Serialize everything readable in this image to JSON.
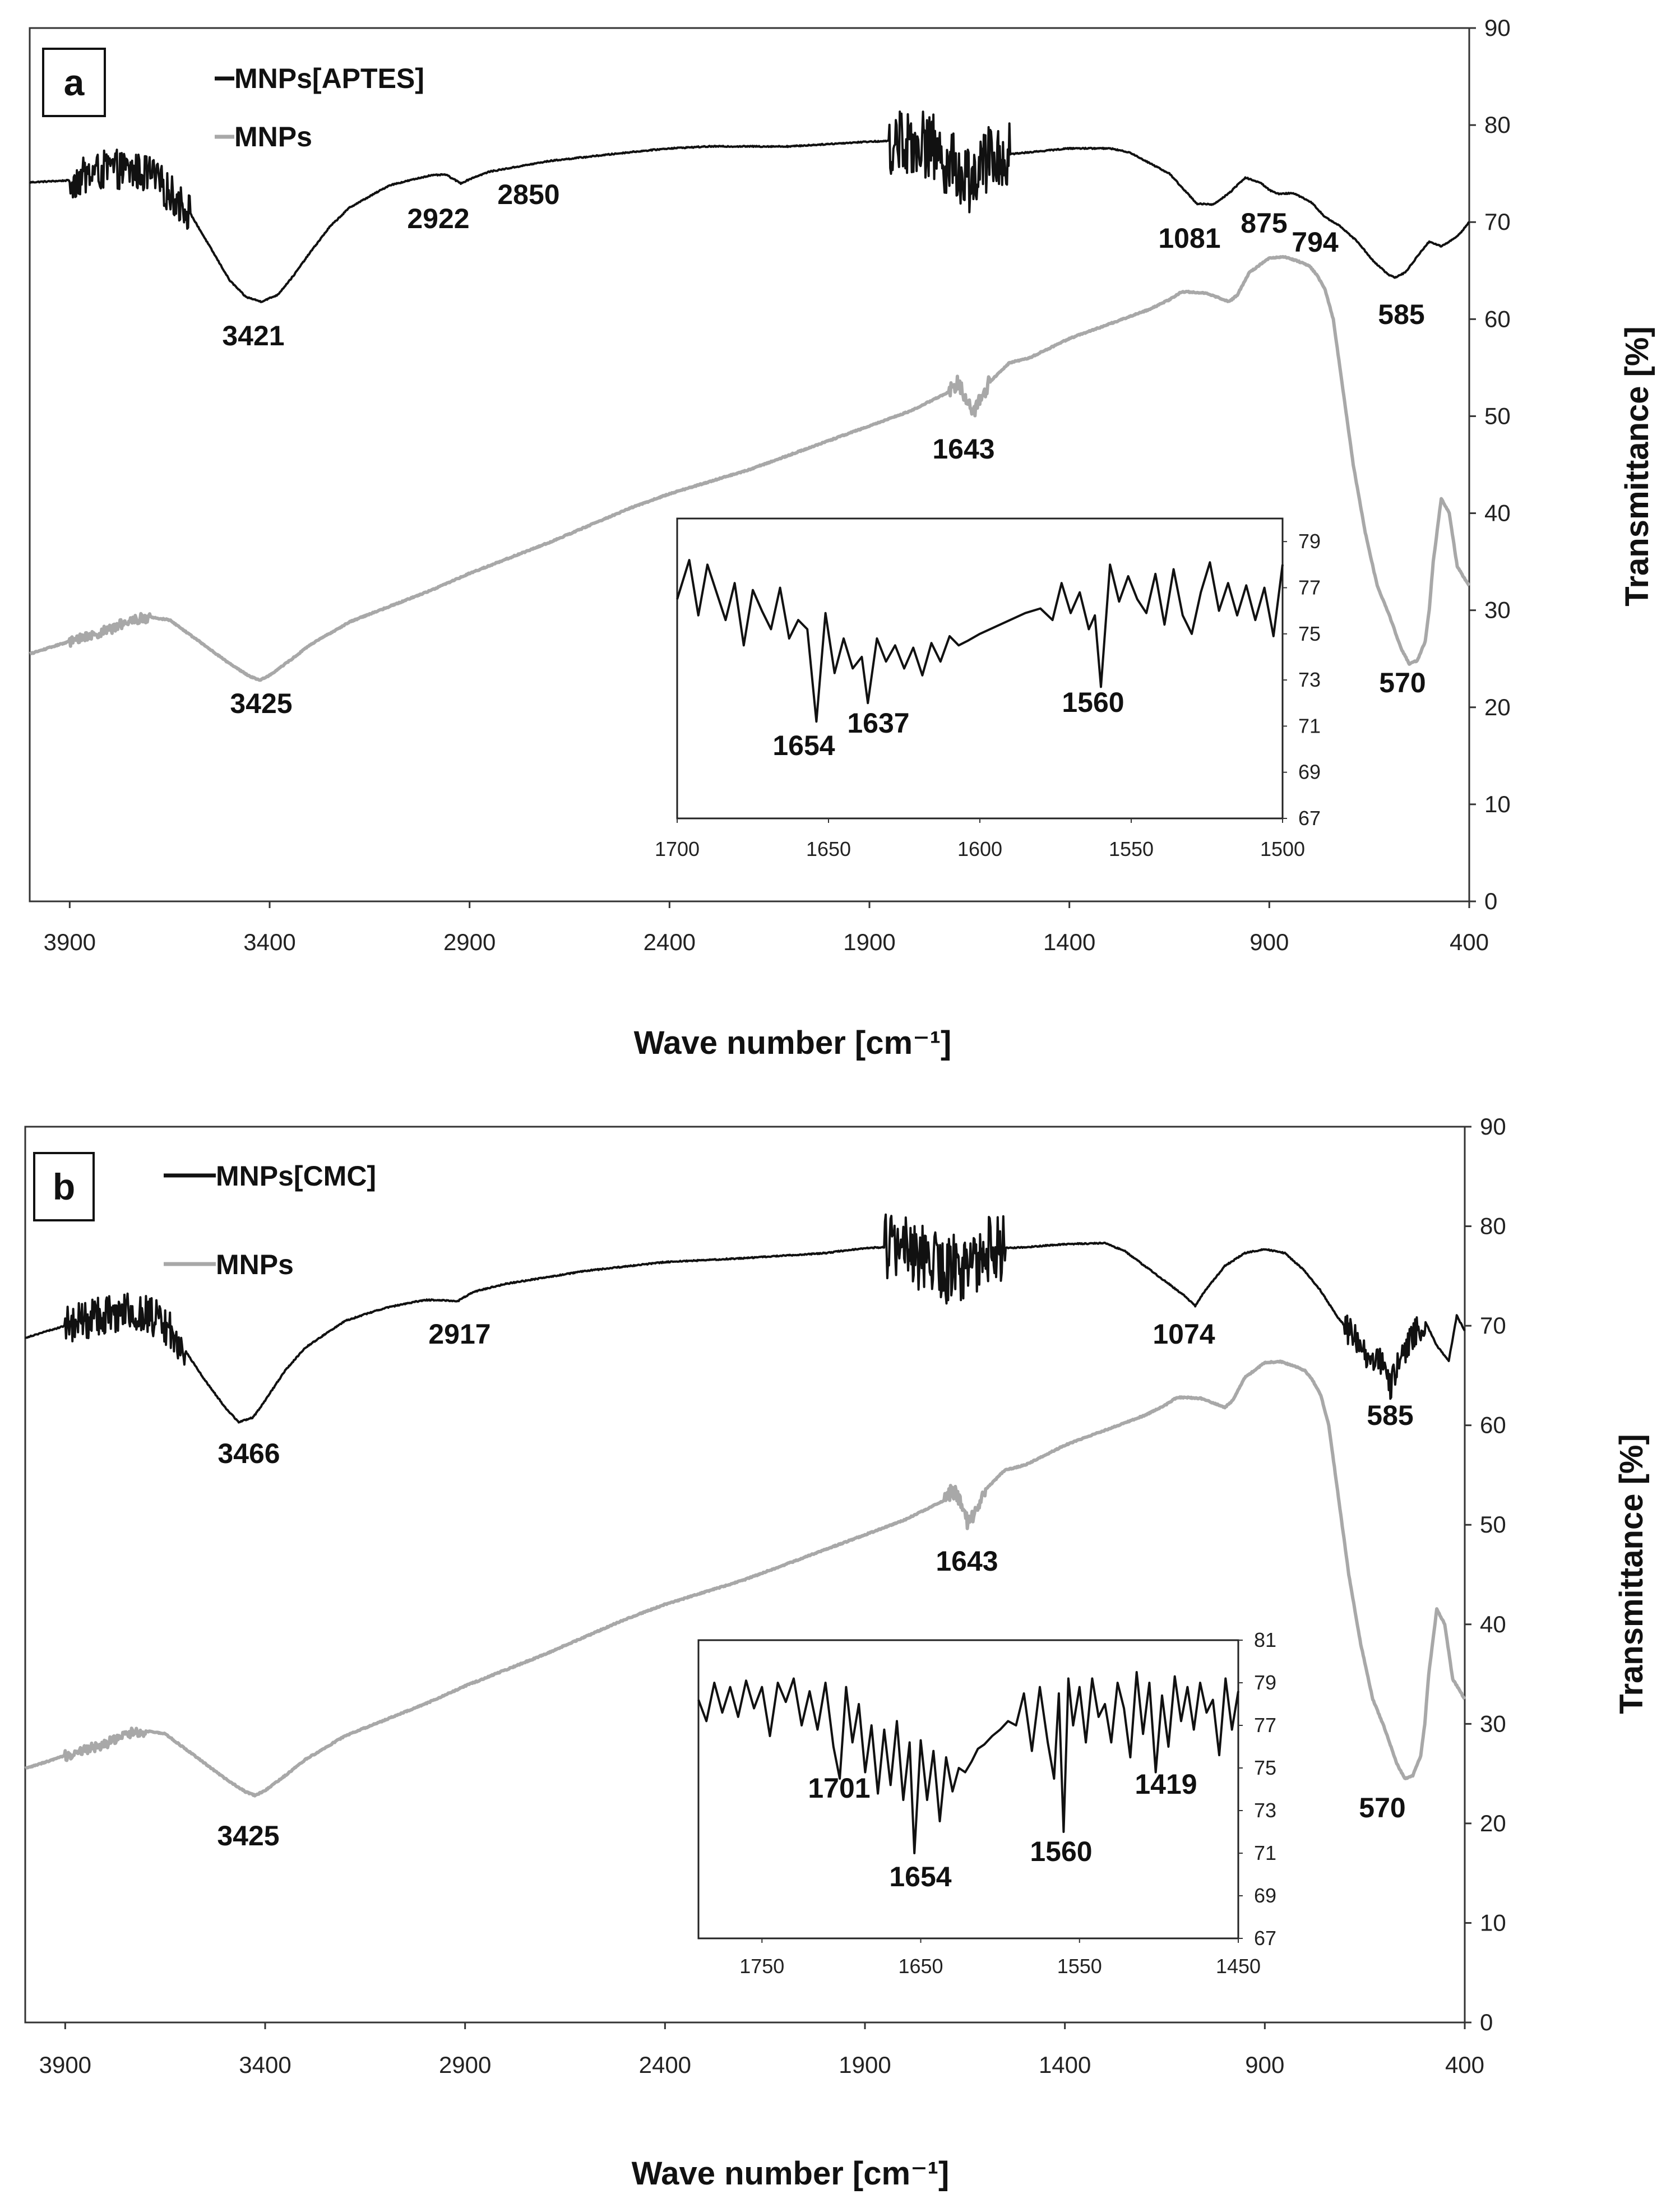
{
  "chart_data": [
    {
      "panel": "a",
      "type": "line",
      "xlabel": "Wave number [cm⁻¹]",
      "ylabel": "Transmittance [%]",
      "xlim": [
        4000,
        400
      ],
      "ylim": [
        0,
        90
      ],
      "xticks": [
        "3900",
        "3400",
        "2900",
        "2400",
        "1900",
        "1400",
        "900",
        "400"
      ],
      "yticks": [
        "0",
        "10",
        "20",
        "30",
        "40",
        "50",
        "60",
        "70",
        "80",
        "90"
      ],
      "series": [
        {
          "name": "MNPs[APTES]",
          "color": "#111111",
          "x": [
            4000,
            3900,
            3800,
            3700,
            3600,
            3550,
            3500,
            3460,
            3421,
            3380,
            3340,
            3300,
            3250,
            3200,
            3100,
            3000,
            2960,
            2922,
            2890,
            2850,
            2700,
            2500,
            2400,
            2300,
            2100,
            1900,
            1800,
            1750,
            1700,
            1650,
            1600,
            1550,
            1500,
            1400,
            1300,
            1250,
            1150,
            1081,
            1040,
            1000,
            960,
            920,
            900,
            875,
            840,
            794,
            760,
            720,
            680,
            640,
            600,
            585,
            560,
            520,
            500,
            470,
            430,
            400
          ],
          "y": [
            74.1,
            74.3,
            75.5,
            75.0,
            71.0,
            67.5,
            64.0,
            62.3,
            61.8,
            62.5,
            64.5,
            66.8,
            69.5,
            71.5,
            73.8,
            74.8,
            74.9,
            74.0,
            74.6,
            75.2,
            76.3,
            77.2,
            77.6,
            77.8,
            77.8,
            78.3,
            78.4,
            78.0,
            76.0,
            74.5,
            76.5,
            77.0,
            77.2,
            77.6,
            77.6,
            77.2,
            75.0,
            71.9,
            71.8,
            73.0,
            74.6,
            74.0,
            73.3,
            72.9,
            73.0,
            72.0,
            70.5,
            69.5,
            68.0,
            66.0,
            64.5,
            64.3,
            64.8,
            67.0,
            68.0,
            67.5,
            68.5,
            70.0
          ],
          "noise_regions": [
            [
              3900,
              3600,
              2.0
            ],
            [
              1850,
              1550,
              3.5
            ]
          ]
        },
        {
          "name": "MNPs",
          "color": "#a8a8a8",
          "x": [
            4000,
            3900,
            3800,
            3750,
            3700,
            3650,
            3600,
            3550,
            3500,
            3450,
            3425,
            3400,
            3350,
            3300,
            3200,
            3000,
            2900,
            2700,
            2500,
            2400,
            2200,
            2000,
            1800,
            1700,
            1680,
            1650,
            1643,
            1620,
            1600,
            1550,
            1500,
            1400,
            1300,
            1200,
            1150,
            1120,
            1100,
            1060,
            1040,
            1000,
            980,
            950,
            900,
            860,
            830,
            800,
            780,
            760,
            740,
            720,
            690,
            660,
            630,
            600,
            570,
            550,
            530,
            510,
            500,
            490,
            470,
            450,
            430,
            400
          ],
          "y": [
            25.5,
            26.8,
            28.0,
            29.0,
            29.3,
            29.0,
            27.5,
            26.0,
            24.5,
            23.2,
            22.8,
            23.3,
            24.8,
            26.4,
            28.8,
            32.0,
            33.8,
            37.0,
            40.5,
            42.0,
            44.5,
            47.5,
            50.5,
            52.5,
            53.5,
            51.5,
            49.8,
            52.0,
            53.5,
            55.5,
            56.0,
            58.0,
            59.5,
            61.0,
            62.0,
            62.8,
            62.8,
            62.7,
            62.4,
            61.8,
            62.5,
            64.8,
            66.3,
            66.4,
            66.0,
            65.5,
            64.5,
            63.0,
            60.0,
            54.0,
            45.0,
            38.0,
            32.5,
            29.5,
            26.0,
            24.5,
            24.8,
            26.8,
            30.0,
            35.0,
            41.5,
            40.0,
            34.5,
            32.5
          ],
          "noise_regions": [
            [
              3900,
              3700,
              0.5
            ],
            [
              1700,
              1600,
              0.8
            ]
          ]
        }
      ],
      "legend": [
        "MNPs[APTES]",
        "MNPs"
      ],
      "annotations": [
        "3421",
        "2922",
        "2850",
        "1081",
        "875",
        "794",
        "585",
        "3425",
        "1643",
        "570"
      ],
      "inset": {
        "type": "line",
        "xlim": [
          1700,
          1500
        ],
        "ylim": [
          67,
          80
        ],
        "xticks": [
          "1700",
          "1650",
          "1600",
          "1550",
          "1500"
        ],
        "yticks": [
          "67",
          "69",
          "71",
          "73",
          "75",
          "77",
          "79"
        ],
        "series": [
          {
            "name": "MNPs[APTES] 1700-1500",
            "x": [
              1700,
              1696,
              1693,
              1690,
              1687,
              1684,
              1681,
              1678,
              1675,
              1672,
              1669,
              1666,
              1663,
              1660,
              1657,
              1654,
              1651,
              1648,
              1645,
              1642,
              1639,
              1637,
              1634,
              1631,
              1628,
              1625,
              1622,
              1619,
              1616,
              1613,
              1610,
              1607,
              1604,
              1600,
              1595,
              1590,
              1585,
              1580,
              1576,
              1573,
              1570,
              1567,
              1564,
              1562,
              1560,
              1557,
              1554,
              1551,
              1548,
              1545,
              1542,
              1539,
              1536,
              1533,
              1530,
              1527,
              1524,
              1521,
              1518,
              1515,
              1512,
              1509,
              1506,
              1503,
              1500
            ],
            "y": [
              76.5,
              78.2,
              75.8,
              78.0,
              76.8,
              75.6,
              77.2,
              74.5,
              76.9,
              76.0,
              75.2,
              77.0,
              74.8,
              75.6,
              75.2,
              71.2,
              75.9,
              73.3,
              74.8,
              73.5,
              74.0,
              72.0,
              74.8,
              73.8,
              74.5,
              73.5,
              74.4,
              73.2,
              74.6,
              73.8,
              74.9,
              74.5,
              74.7,
              75.0,
              75.3,
              75.6,
              75.9,
              76.1,
              75.6,
              77.2,
              75.9,
              76.8,
              75.2,
              75.8,
              72.7,
              78.0,
              76.4,
              77.5,
              76.5,
              75.9,
              77.6,
              75.4,
              77.8,
              75.8,
              75.0,
              76.8,
              78.1,
              76.0,
              77.2,
              75.8,
              77.1,
              75.6,
              77.0,
              74.9,
              78.0
            ]
          }
        ],
        "annotations": [
          "1654",
          "1637",
          "1560"
        ]
      }
    },
    {
      "panel": "b",
      "type": "line",
      "xlabel": "Wave number [cm⁻¹]",
      "ylabel": "Transmittance [%]",
      "xlim": [
        4000,
        400
      ],
      "ylim": [
        0,
        90
      ],
      "xticks": [
        "3900",
        "3400",
        "2900",
        "2400",
        "1900",
        "1400",
        "900",
        "400"
      ],
      "yticks": [
        "0",
        "10",
        "20",
        "30",
        "40",
        "50",
        "60",
        "70",
        "80",
        "90"
      ],
      "series": [
        {
          "name": "MNPs[CMC]",
          "color": "#111111",
          "x": [
            4000,
            3900,
            3800,
            3700,
            3650,
            3600,
            3550,
            3500,
            3466,
            3430,
            3400,
            3350,
            3300,
            3200,
            3100,
            3000,
            2917,
            2880,
            2800,
            2600,
            2400,
            2200,
            2000,
            1900,
            1800,
            1750,
            1700,
            1650,
            1600,
            1550,
            1500,
            1400,
            1300,
            1250,
            1200,
            1150,
            1100,
            1074,
            1050,
            1000,
            950,
            900,
            850,
            800,
            760,
            720,
            680,
            640,
            600,
            585,
            560,
            520,
            500,
            470,
            440,
            420,
            400
          ],
          "y": [
            68.8,
            70.0,
            71.2,
            71.3,
            70.0,
            67.5,
            64.5,
            61.8,
            60.3,
            60.8,
            62.5,
            65.5,
            67.8,
            70.5,
            71.8,
            72.6,
            72.5,
            73.4,
            74.2,
            75.5,
            76.4,
            76.8,
            77.3,
            77.8,
            78.0,
            76.5,
            75.5,
            76.0,
            77.5,
            77.8,
            77.9,
            78.2,
            78.3,
            77.5,
            76.0,
            74.5,
            73.0,
            72.0,
            73.5,
            76.0,
            77.3,
            77.7,
            77.3,
            75.5,
            73.5,
            71.0,
            69.0,
            67.0,
            66.0,
            64.0,
            67.0,
            69.5,
            70.5,
            68.0,
            66.5,
            71.0,
            69.5
          ],
          "noise_regions": [
            [
              3900,
              3600,
              2.0
            ],
            [
              1850,
              1550,
              3.5
            ],
            [
              700,
              500,
              1.5
            ]
          ]
        },
        {
          "name": "MNPs",
          "color": "#a8a8a8",
          "x": [
            4000,
            3900,
            3800,
            3750,
            3700,
            3650,
            3600,
            3550,
            3500,
            3450,
            3425,
            3400,
            3350,
            3300,
            3200,
            3000,
            2900,
            2700,
            2500,
            2400,
            2200,
            2000,
            1800,
            1700,
            1680,
            1650,
            1643,
            1620,
            1600,
            1550,
            1500,
            1400,
            1300,
            1200,
            1150,
            1120,
            1100,
            1060,
            1040,
            1000,
            980,
            950,
            900,
            860,
            830,
            800,
            780,
            760,
            740,
            720,
            690,
            660,
            630,
            600,
            570,
            550,
            530,
            510,
            500,
            490,
            470,
            450,
            430,
            400
          ],
          "y": [
            25.5,
            26.8,
            28.0,
            29.0,
            29.3,
            29.0,
            27.5,
            26.0,
            24.5,
            23.2,
            22.8,
            23.3,
            24.8,
            26.4,
            28.8,
            32.0,
            33.8,
            37.0,
            40.5,
            42.0,
            44.5,
            47.5,
            50.5,
            52.5,
            53.5,
            51.5,
            49.8,
            52.0,
            53.5,
            55.5,
            56.0,
            58.0,
            59.5,
            61.0,
            62.0,
            62.8,
            62.8,
            62.7,
            62.4,
            61.8,
            62.5,
            64.8,
            66.3,
            66.4,
            66.0,
            65.5,
            64.5,
            63.0,
            60.0,
            54.0,
            45.0,
            38.0,
            32.5,
            29.5,
            26.0,
            24.5,
            24.8,
            26.8,
            30.0,
            35.0,
            41.5,
            40.0,
            34.5,
            32.5
          ],
          "noise_regions": [
            [
              3900,
              3700,
              0.5
            ],
            [
              1700,
              1600,
              0.8
            ]
          ]
        }
      ],
      "legend": [
        "MNPs[CMC]",
        "MNPs"
      ],
      "annotations": [
        "3466",
        "2917",
        "1074",
        "585",
        "3425",
        "1643",
        "570"
      ],
      "inset": {
        "type": "line",
        "xlim": [
          1790,
          1450
        ],
        "ylim": [
          67,
          81
        ],
        "xticks": [
          "1750",
          "1650",
          "1550",
          "1450"
        ],
        "yticks": [
          "67",
          "69",
          "71",
          "73",
          "75",
          "77",
          "79",
          "81"
        ],
        "series": [
          {
            "name": "MNPs[CMC] 1790-1450",
            "x": [
              1790,
              1785,
              1780,
              1775,
              1770,
              1765,
              1760,
              1755,
              1750,
              1745,
              1740,
              1735,
              1730,
              1725,
              1720,
              1715,
              1710,
              1705,
              1701,
              1697,
              1693,
              1689,
              1685,
              1681,
              1677,
              1673,
              1669,
              1665,
              1661,
              1657,
              1654,
              1650,
              1646,
              1642,
              1638,
              1634,
              1630,
              1626,
              1622,
              1618,
              1614,
              1610,
              1605,
              1600,
              1595,
              1590,
              1585,
              1580,
              1575,
              1570,
              1566,
              1563,
              1560,
              1557,
              1554,
              1550,
              1546,
              1542,
              1538,
              1534,
              1530,
              1526,
              1522,
              1518,
              1514,
              1510,
              1506,
              1502,
              1498,
              1494,
              1490,
              1486,
              1482,
              1478,
              1474,
              1470,
              1466,
              1462,
              1458,
              1454,
              1450
            ],
            "y": [
              78.2,
              77.2,
              79.0,
              77.6,
              78.8,
              77.4,
              79.1,
              77.8,
              78.8,
              76.5,
              79.0,
              78.1,
              79.2,
              77.0,
              78.6,
              76.8,
              79.0,
              76.0,
              74.5,
              78.8,
              76.2,
              78.0,
              74.8,
              77.0,
              73.8,
              76.8,
              74.2,
              77.2,
              73.5,
              76.2,
              71.0,
              76.3,
              73.5,
              75.8,
              72.5,
              75.5,
              73.9,
              75.0,
              74.8,
              75.3,
              75.9,
              76.1,
              76.5,
              76.8,
              77.2,
              77.0,
              78.5,
              75.8,
              78.8,
              76.2,
              74.5,
              78.5,
              72.0,
              79.2,
              77.0,
              78.8,
              76.2,
              79.2,
              77.4,
              78.0,
              76.2,
              79.0,
              77.8,
              75.5,
              79.5,
              76.6,
              79.0,
              74.8,
              78.4,
              76.0,
              79.3,
              77.2,
              78.8,
              76.8,
              79.0,
              77.6,
              78.2,
              75.6,
              79.2,
              76.8,
              78.6
            ]
          }
        ],
        "annotations": [
          "1701",
          "1654",
          "1560",
          "1419"
        ]
      }
    }
  ]
}
